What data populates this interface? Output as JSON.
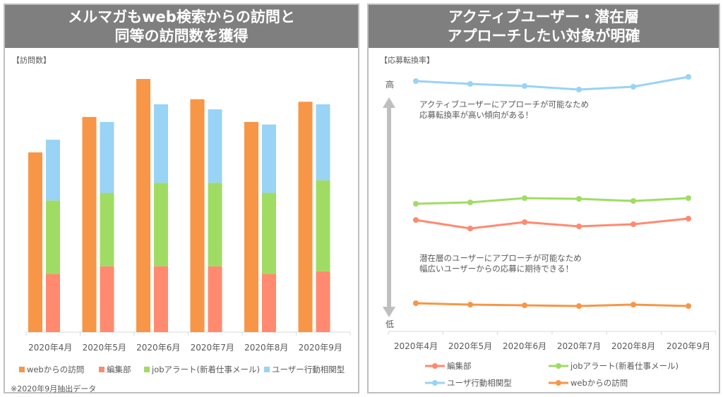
{
  "left": {
    "title_line1": "メルマガもweb検索からの訪問と",
    "title_line2": "同等の訪問数を獲得",
    "ylabel": "【訪問数】",
    "footnote": "※2020年9月抽出データ"
  },
  "right": {
    "title_line1": "アクティブユーザー・潜在層",
    "title_line2": "アプローチしたい対象が明確",
    "ylabel": "【応募転換率】",
    "high": "高",
    "low": "低",
    "annotation1_line1": "アクティブユーザーにアプローチが可能なため",
    "annotation1_line2": "応募転換率が高い傾向がある！",
    "annotation2_line1": "潜在層のユーザーにアプローチが可能なため",
    "annotation2_line2": "幅広いユーザーからの応募に期待できる！"
  },
  "chart_data": [
    {
      "type": "bar",
      "title": "",
      "ylabel": "【訪問数】",
      "categories": [
        "2020年4月",
        "2020年5月",
        "2020年6月",
        "2020年7月",
        "2020年8月",
        "2020年9月"
      ],
      "note": "web bar side by side with stacked bar of other three; no y-axis scale printed (relative units)",
      "ylim": [
        0,
        100
      ],
      "grid": false,
      "legend": "bottom",
      "series": [
        {
          "name": "webからの訪問",
          "color": "#f79646",
          "stack": "a",
          "values": [
            71,
            85,
            100,
            92,
            83,
            91
          ]
        },
        {
          "name": "編集部",
          "color": "#ff8a70",
          "stack": "b",
          "values": [
            23,
            26,
            26,
            26,
            23,
            24
          ]
        },
        {
          "name": "jobアラート(新着仕事メール)",
          "color": "#a0dc64",
          "stack": "b",
          "values": [
            29,
            29,
            33,
            33,
            32,
            36
          ]
        },
        {
          "name": "ユーザー行動相関型",
          "color": "#99d3f5",
          "stack": "b",
          "values": [
            24,
            28,
            31,
            29,
            27,
            30
          ]
        }
      ]
    },
    {
      "type": "line",
      "title": "",
      "ylabel": "【応募転換率】",
      "categories": [
        "2020年4月",
        "2020年5月",
        "2020年6月",
        "2020年7月",
        "2020年8月",
        "2020年9月"
      ],
      "ylim": [
        0,
        360
      ],
      "grid": false,
      "legend": "bottom",
      "series": [
        {
          "name": "編集部",
          "color": "#ff8a70",
          "values": [
            150,
            138,
            147,
            141,
            144,
            152
          ]
        },
        {
          "name": "jobアラート(新着仕事メール)",
          "color": "#a0dc64",
          "values": [
            173,
            175,
            181,
            180,
            177,
            181
          ]
        },
        {
          "name": "ユーザ行動相関型",
          "color": "#99d3f5",
          "values": [
            347,
            343,
            340,
            335,
            339,
            353
          ]
        },
        {
          "name": "webからの訪問",
          "color": "#f79646",
          "values": [
            32,
            30,
            29,
            28,
            30,
            28
          ]
        }
      ]
    }
  ]
}
